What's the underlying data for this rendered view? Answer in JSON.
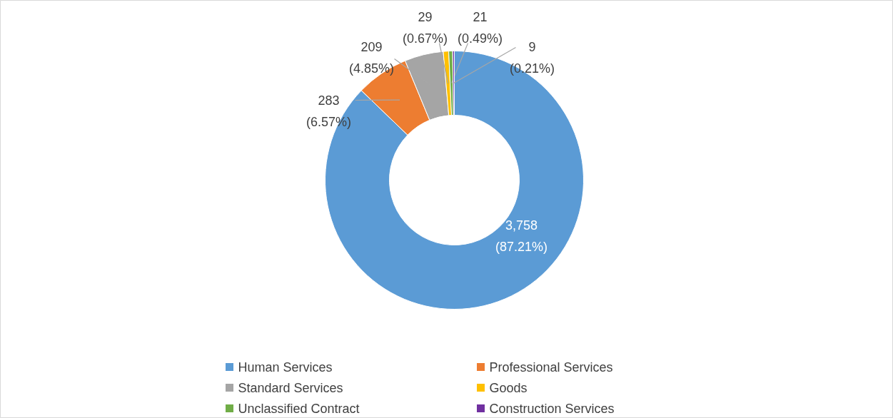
{
  "chart_data": {
    "type": "donut",
    "categories": [
      "Human Services",
      "Professional Services",
      "Standard Services",
      "Goods",
      "Unclassified Contract",
      "Construction Services"
    ],
    "values": [
      3758,
      283,
      209,
      29,
      21,
      9
    ],
    "colors": [
      "#5b9bd5",
      "#ed7d31",
      "#a5a5a5",
      "#ffc000",
      "#70ad47",
      "#7030a0"
    ],
    "value_labels": [
      "3,758\n(87.21%)",
      "283\n(6.57%)",
      "209\n(4.85%)",
      "29\n(0.67%)",
      "21\n(0.49%)",
      "9\n(0.21%)"
    ],
    "legend": "bottom"
  }
}
